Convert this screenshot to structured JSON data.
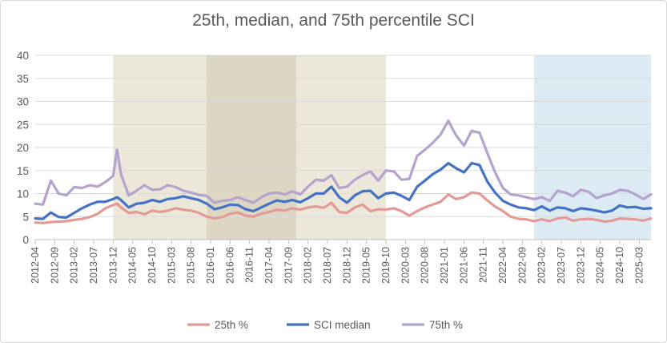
{
  "chart_data": {
    "type": "line",
    "title": "25th, median, and 75th percentile SCI",
    "xlabel": "",
    "ylabel": "",
    "ylim": [
      0,
      40
    ],
    "y_ticks": [
      "0",
      "5",
      "10",
      "15",
      "20",
      "25",
      "30",
      "35",
      "40"
    ],
    "grid": "horizontal",
    "legend_position": "bottom",
    "x_start": "2012-04",
    "x_end": "2025-06",
    "x_tick_labels": [
      "2012-04",
      "2012-09",
      "2013-02",
      "2013-07",
      "2013-12",
      "2014-05",
      "2014-10",
      "2015-03",
      "2015-08",
      "2016-01",
      "2016-06",
      "2016-11",
      "2017-04",
      "2017-09",
      "2018-02",
      "2018-07",
      "2018-12",
      "2019-05",
      "2019-10",
      "2020-03",
      "2020-08",
      "2021-01",
      "2021-06",
      "2021-11",
      "2022-04",
      "2022-09",
      "2023-02",
      "2023-07",
      "2023-12",
      "2024-05",
      "2024-10",
      "2025-03"
    ],
    "shaded_regions": [
      {
        "start": "2013-12",
        "end": "2019-10",
        "color": "#ebe7d9"
      },
      {
        "start": "2015-12",
        "end": "2017-11",
        "color": "#ddd6c2"
      },
      {
        "start": "2022-12",
        "end": "2025-06",
        "color": "#dcebf3"
      }
    ],
    "series": [
      {
        "name": "25th %",
        "color": "#e39a96",
        "points": [
          [
            "2012-04",
            3.7
          ],
          [
            "2012-06",
            3.6
          ],
          [
            "2012-08",
            3.8
          ],
          [
            "2012-10",
            3.9
          ],
          [
            "2012-12",
            4.0
          ],
          [
            "2013-02",
            4.3
          ],
          [
            "2013-04",
            4.5
          ],
          [
            "2013-06",
            4.9
          ],
          [
            "2013-08",
            5.6
          ],
          [
            "2013-10",
            6.8
          ],
          [
            "2013-12",
            7.5
          ],
          [
            "2014-01",
            7.8
          ],
          [
            "2014-02",
            7.0
          ],
          [
            "2014-04",
            5.8
          ],
          [
            "2014-06",
            6.0
          ],
          [
            "2014-08",
            5.5
          ],
          [
            "2014-10",
            6.3
          ],
          [
            "2014-12",
            6.0
          ],
          [
            "2015-02",
            6.3
          ],
          [
            "2015-04",
            6.8
          ],
          [
            "2015-06",
            6.5
          ],
          [
            "2015-08",
            6.3
          ],
          [
            "2015-10",
            5.8
          ],
          [
            "2015-12",
            5.0
          ],
          [
            "2016-02",
            4.6
          ],
          [
            "2016-04",
            4.9
          ],
          [
            "2016-06",
            5.6
          ],
          [
            "2016-08",
            5.9
          ],
          [
            "2016-10",
            5.2
          ],
          [
            "2016-12",
            5.0
          ],
          [
            "2017-02",
            5.6
          ],
          [
            "2017-04",
            6.0
          ],
          [
            "2017-06",
            6.5
          ],
          [
            "2017-08",
            6.3
          ],
          [
            "2017-10",
            6.8
          ],
          [
            "2017-12",
            6.5
          ],
          [
            "2018-02",
            7.0
          ],
          [
            "2018-04",
            7.2
          ],
          [
            "2018-06",
            6.9
          ],
          [
            "2018-08",
            8.0
          ],
          [
            "2018-10",
            6.0
          ],
          [
            "2018-12",
            5.8
          ],
          [
            "2019-02",
            7.0
          ],
          [
            "2019-04",
            7.6
          ],
          [
            "2019-06",
            6.2
          ],
          [
            "2019-08",
            6.6
          ],
          [
            "2019-10",
            6.5
          ],
          [
            "2019-12",
            6.8
          ],
          [
            "2020-02",
            6.2
          ],
          [
            "2020-04",
            5.2
          ],
          [
            "2020-06",
            6.2
          ],
          [
            "2020-08",
            7.0
          ],
          [
            "2020-10",
            7.6
          ],
          [
            "2020-12",
            8.2
          ],
          [
            "2021-02",
            9.8
          ],
          [
            "2021-04",
            8.8
          ],
          [
            "2021-06",
            9.2
          ],
          [
            "2021-08",
            10.2
          ],
          [
            "2021-10",
            10.0
          ],
          [
            "2021-12",
            8.5
          ],
          [
            "2022-02",
            7.2
          ],
          [
            "2022-04",
            6.2
          ],
          [
            "2022-06",
            5.0
          ],
          [
            "2022-08",
            4.5
          ],
          [
            "2022-10",
            4.4
          ],
          [
            "2022-12",
            4.0
          ],
          [
            "2023-02",
            4.4
          ],
          [
            "2023-04",
            4.0
          ],
          [
            "2023-06",
            4.6
          ],
          [
            "2023-08",
            4.8
          ],
          [
            "2023-10",
            4.1
          ],
          [
            "2023-12",
            4.4
          ],
          [
            "2024-02",
            4.5
          ],
          [
            "2024-04",
            4.3
          ],
          [
            "2024-06",
            3.9
          ],
          [
            "2024-08",
            4.1
          ],
          [
            "2024-10",
            4.6
          ],
          [
            "2024-12",
            4.5
          ],
          [
            "2025-02",
            4.4
          ],
          [
            "2025-04",
            4.1
          ],
          [
            "2025-06",
            4.6
          ]
        ]
      },
      {
        "name": "SCI median",
        "color": "#4472c4",
        "points": [
          [
            "2012-04",
            4.6
          ],
          [
            "2012-06",
            4.5
          ],
          [
            "2012-08",
            5.9
          ],
          [
            "2012-10",
            4.9
          ],
          [
            "2012-12",
            4.8
          ],
          [
            "2013-02",
            5.8
          ],
          [
            "2013-04",
            6.8
          ],
          [
            "2013-06",
            7.6
          ],
          [
            "2013-08",
            8.2
          ],
          [
            "2013-10",
            8.2
          ],
          [
            "2013-12",
            8.8
          ],
          [
            "2014-01",
            9.2
          ],
          [
            "2014-02",
            8.6
          ],
          [
            "2014-04",
            7.0
          ],
          [
            "2014-06",
            7.8
          ],
          [
            "2014-08",
            8.0
          ],
          [
            "2014-10",
            8.6
          ],
          [
            "2014-12",
            8.2
          ],
          [
            "2015-02",
            8.8
          ],
          [
            "2015-04",
            9.0
          ],
          [
            "2015-06",
            9.4
          ],
          [
            "2015-08",
            9.0
          ],
          [
            "2015-10",
            8.6
          ],
          [
            "2015-12",
            7.8
          ],
          [
            "2016-02",
            6.6
          ],
          [
            "2016-04",
            7.0
          ],
          [
            "2016-06",
            7.6
          ],
          [
            "2016-08",
            7.5
          ],
          [
            "2016-10",
            6.6
          ],
          [
            "2016-12",
            6.2
          ],
          [
            "2017-02",
            7.0
          ],
          [
            "2017-04",
            7.8
          ],
          [
            "2017-06",
            8.5
          ],
          [
            "2017-08",
            8.2
          ],
          [
            "2017-10",
            8.6
          ],
          [
            "2017-12",
            8.1
          ],
          [
            "2018-02",
            9.0
          ],
          [
            "2018-04",
            10.0
          ],
          [
            "2018-06",
            10.0
          ],
          [
            "2018-08",
            11.5
          ],
          [
            "2018-10",
            9.2
          ],
          [
            "2018-12",
            8.0
          ],
          [
            "2019-02",
            9.6
          ],
          [
            "2019-04",
            10.5
          ],
          [
            "2019-06",
            10.6
          ],
          [
            "2019-08",
            9.0
          ],
          [
            "2019-10",
            10.0
          ],
          [
            "2019-12",
            10.2
          ],
          [
            "2020-02",
            9.5
          ],
          [
            "2020-04",
            8.6
          ],
          [
            "2020-06",
            11.5
          ],
          [
            "2020-08",
            12.8
          ],
          [
            "2020-10",
            14.2
          ],
          [
            "2020-12",
            15.2
          ],
          [
            "2021-02",
            16.6
          ],
          [
            "2021-04",
            15.5
          ],
          [
            "2021-06",
            14.6
          ],
          [
            "2021-08",
            16.6
          ],
          [
            "2021-10",
            16.2
          ],
          [
            "2021-12",
            12.6
          ],
          [
            "2022-02",
            10.2
          ],
          [
            "2022-04",
            8.4
          ],
          [
            "2022-06",
            7.6
          ],
          [
            "2022-08",
            7.0
          ],
          [
            "2022-10",
            6.8
          ],
          [
            "2022-12",
            6.4
          ],
          [
            "2023-02",
            7.2
          ],
          [
            "2023-04",
            6.3
          ],
          [
            "2023-06",
            7.0
          ],
          [
            "2023-08",
            6.8
          ],
          [
            "2023-10",
            6.2
          ],
          [
            "2023-12",
            6.8
          ],
          [
            "2024-02",
            6.6
          ],
          [
            "2024-04",
            6.3
          ],
          [
            "2024-06",
            5.9
          ],
          [
            "2024-08",
            6.3
          ],
          [
            "2024-10",
            7.4
          ],
          [
            "2024-12",
            7.0
          ],
          [
            "2025-02",
            7.1
          ],
          [
            "2025-04",
            6.7
          ],
          [
            "2025-06",
            6.8
          ]
        ]
      },
      {
        "name": "75th %",
        "color": "#b4a3cf",
        "points": [
          [
            "2012-04",
            7.8
          ],
          [
            "2012-06",
            7.6
          ],
          [
            "2012-08",
            12.8
          ],
          [
            "2012-10",
            10.0
          ],
          [
            "2012-12",
            9.6
          ],
          [
            "2013-02",
            11.4
          ],
          [
            "2013-04",
            11.2
          ],
          [
            "2013-06",
            11.8
          ],
          [
            "2013-08",
            11.5
          ],
          [
            "2013-10",
            12.5
          ],
          [
            "2013-12",
            13.8
          ],
          [
            "2014-01",
            19.5
          ],
          [
            "2014-02",
            14.2
          ],
          [
            "2014-04",
            9.6
          ],
          [
            "2014-06",
            10.6
          ],
          [
            "2014-08",
            11.8
          ],
          [
            "2014-10",
            10.8
          ],
          [
            "2014-12",
            10.9
          ],
          [
            "2015-02",
            11.8
          ],
          [
            "2015-04",
            11.4
          ],
          [
            "2015-06",
            10.6
          ],
          [
            "2015-08",
            10.2
          ],
          [
            "2015-10",
            9.7
          ],
          [
            "2015-12",
            9.5
          ],
          [
            "2016-02",
            8.0
          ],
          [
            "2016-04",
            8.4
          ],
          [
            "2016-06",
            8.6
          ],
          [
            "2016-08",
            9.2
          ],
          [
            "2016-10",
            8.6
          ],
          [
            "2016-12",
            8.0
          ],
          [
            "2017-02",
            9.2
          ],
          [
            "2017-04",
            10.0
          ],
          [
            "2017-06",
            10.2
          ],
          [
            "2017-08",
            9.8
          ],
          [
            "2017-10",
            10.5
          ],
          [
            "2017-12",
            9.8
          ],
          [
            "2018-02",
            11.5
          ],
          [
            "2018-04",
            13.0
          ],
          [
            "2018-06",
            12.8
          ],
          [
            "2018-08",
            14.0
          ],
          [
            "2018-10",
            11.2
          ],
          [
            "2018-12",
            11.5
          ],
          [
            "2019-02",
            13.0
          ],
          [
            "2019-04",
            14.0
          ],
          [
            "2019-06",
            14.8
          ],
          [
            "2019-08",
            12.8
          ],
          [
            "2019-10",
            15.0
          ],
          [
            "2019-12",
            14.8
          ],
          [
            "2020-02",
            13.0
          ],
          [
            "2020-04",
            13.2
          ],
          [
            "2020-06",
            18.2
          ],
          [
            "2020-08",
            19.5
          ],
          [
            "2020-10",
            21.0
          ],
          [
            "2020-12",
            22.8
          ],
          [
            "2021-02",
            25.8
          ],
          [
            "2021-04",
            22.6
          ],
          [
            "2021-06",
            20.4
          ],
          [
            "2021-08",
            23.6
          ],
          [
            "2021-10",
            23.2
          ],
          [
            "2021-12",
            18.8
          ],
          [
            "2022-02",
            14.6
          ],
          [
            "2022-04",
            11.2
          ],
          [
            "2022-06",
            9.8
          ],
          [
            "2022-08",
            9.6
          ],
          [
            "2022-10",
            9.2
          ],
          [
            "2022-12",
            8.8
          ],
          [
            "2023-02",
            9.2
          ],
          [
            "2023-04",
            8.4
          ],
          [
            "2023-06",
            10.6
          ],
          [
            "2023-08",
            10.2
          ],
          [
            "2023-10",
            9.4
          ],
          [
            "2023-12",
            10.8
          ],
          [
            "2024-02",
            10.4
          ],
          [
            "2024-04",
            9.0
          ],
          [
            "2024-06",
            9.6
          ],
          [
            "2024-08",
            10.0
          ],
          [
            "2024-10",
            10.8
          ],
          [
            "2024-12",
            10.6
          ],
          [
            "2025-02",
            9.8
          ],
          [
            "2025-04",
            8.8
          ],
          [
            "2025-06",
            9.8
          ]
        ]
      }
    ]
  }
}
